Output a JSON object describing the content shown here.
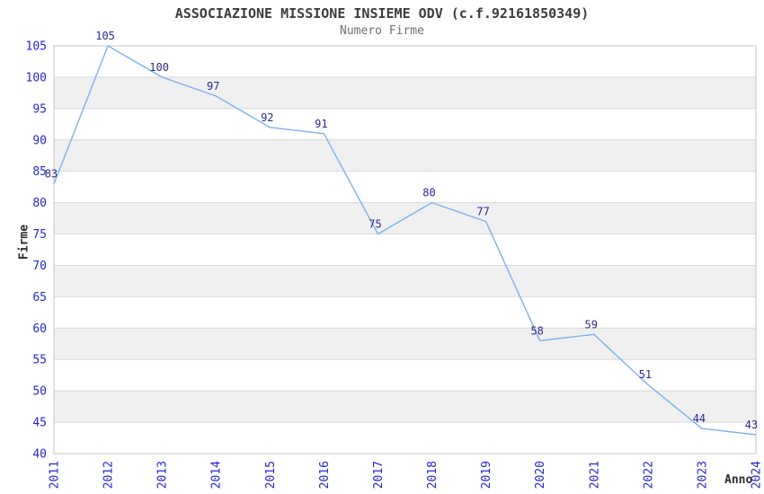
{
  "chart_data": {
    "type": "line",
    "title": "ASSOCIAZIONE MISSIONE INSIEME ODV (c.f.92161850349)",
    "subtitle": "Numero Firme",
    "xlabel": "Anno",
    "ylabel": "Firme",
    "categories": [
      "2011",
      "2012",
      "2013",
      "2014",
      "2015",
      "2016",
      "2017",
      "2018",
      "2019",
      "2020",
      "2021",
      "2022",
      "2023",
      "2024"
    ],
    "values": [
      83,
      105,
      100,
      97,
      92,
      91,
      75,
      80,
      77,
      58,
      59,
      51,
      44,
      43
    ],
    "data_labels_visible": true,
    "ylim": [
      40,
      105
    ],
    "ytick_step": 5,
    "yticks": [
      40,
      45,
      50,
      55,
      60,
      65,
      70,
      75,
      80,
      85,
      90,
      95,
      100,
      105
    ],
    "grid": true,
    "legend": false,
    "alternating_bands": true,
    "colors": {
      "line": "#7fb0ef",
      "tick_labels": "#2626d4",
      "data_labels": "#29298e",
      "title": "#3c3c3c",
      "subtitle": "#6f6f6f",
      "axis_names": "#2b2b2b",
      "band": "#f0f0f0",
      "gridline": "#d9d9d9",
      "border": "#c4c4c4",
      "background": "#ffffff"
    }
  }
}
